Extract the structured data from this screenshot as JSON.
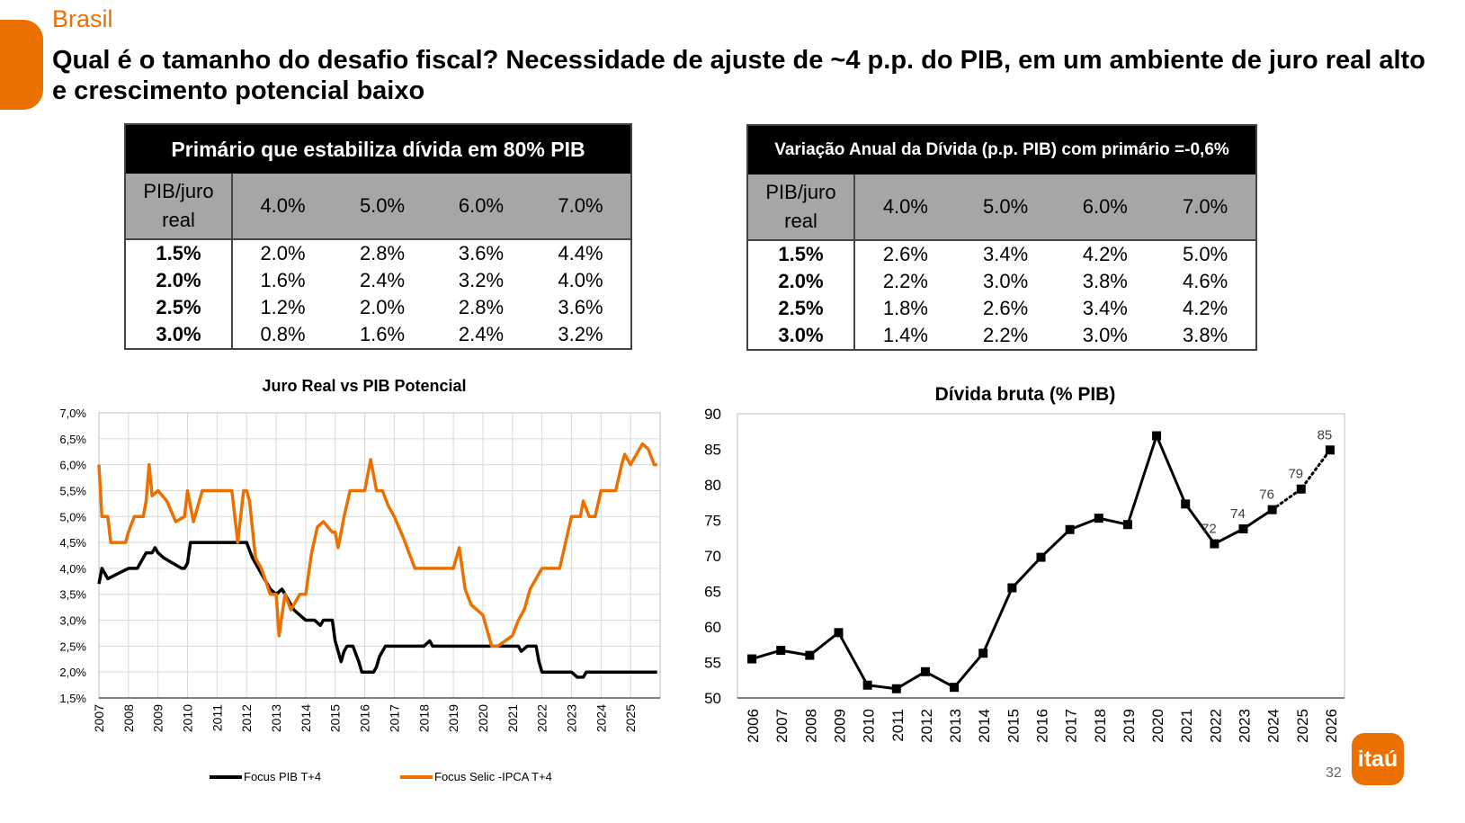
{
  "header": {
    "section": "Brasil",
    "title": "Qual é o tamanho do desafio fiscal? Necessidade de ajuste de ~4 p.p. do PIB, em um ambiente de juro real alto e crescimento potencial baixo"
  },
  "table_left": {
    "title": "Primário que estabiliza dívida em 80% PIB",
    "corner": "PIB/juro real",
    "cols": [
      "4.0%",
      "5.0%",
      "6.0%",
      "7.0%"
    ],
    "rows": [
      {
        "label": "1.5%",
        "values": [
          "2.0%",
          "2.8%",
          "3.6%",
          "4.4%"
        ]
      },
      {
        "label": "2.0%",
        "values": [
          "1.6%",
          "2.4%",
          "3.2%",
          "4.0%"
        ]
      },
      {
        "label": "2.5%",
        "values": [
          "1.2%",
          "2.0%",
          "2.8%",
          "3.6%"
        ]
      },
      {
        "label": "3.0%",
        "values": [
          "0.8%",
          "1.6%",
          "2.4%",
          "3.2%"
        ]
      }
    ]
  },
  "table_right": {
    "title": "Variação Anual da Dívida (p.p. PIB) com primário =-0,6%",
    "corner": "PIB/juro real",
    "cols": [
      "4.0%",
      "5.0%",
      "6.0%",
      "7.0%"
    ],
    "rows": [
      {
        "label": "1.5%",
        "values": [
          "2.6%",
          "3.4%",
          "4.2%",
          "5.0%"
        ]
      },
      {
        "label": "2.0%",
        "values": [
          "2.2%",
          "3.0%",
          "3.8%",
          "4.6%"
        ]
      },
      {
        "label": "2.5%",
        "values": [
          "1.8%",
          "2.6%",
          "3.4%",
          "4.2%"
        ]
      },
      {
        "label": "3.0%",
        "values": [
          "1.4%",
          "2.2%",
          "3.0%",
          "3.8%"
        ]
      }
    ]
  },
  "chart_data": [
    {
      "type": "line",
      "title": "Juro Real vs PIB Potencial",
      "xlabel": "",
      "ylabel": "",
      "ylim": [
        1.5,
        7.0
      ],
      "yticks": [
        "1,5%",
        "2,0%",
        "2,5%",
        "3,0%",
        "3,5%",
        "4,0%",
        "4,5%",
        "5,0%",
        "5,5%",
        "6,0%",
        "6,5%",
        "7,0%"
      ],
      "xlim": [
        2007,
        2026
      ],
      "xticks": [
        "2007",
        "2008",
        "2009",
        "2010",
        "2011",
        "2012",
        "2013",
        "2014",
        "2015",
        "2016",
        "2017",
        "2018",
        "2019",
        "2020",
        "2021",
        "2022",
        "2023",
        "2024",
        "2025"
      ],
      "grid": true,
      "legend": "bottom",
      "series": [
        {
          "name": "Focus PIB T+4",
          "color": "#000000",
          "x": [
            2007.0,
            2007.1,
            2007.3,
            2008.0,
            2008.3,
            2008.6,
            2008.8,
            2008.9,
            2009.0,
            2009.2,
            2009.5,
            2009.8,
            2009.9,
            2010.0,
            2010.1,
            2011.0,
            2012.0,
            2012.2,
            2012.4,
            2012.6,
            2012.8,
            2013.0,
            2013.2,
            2013.4,
            2013.6,
            2013.8,
            2014.0,
            2014.3,
            2014.5,
            2014.6,
            2014.9,
            2015.0,
            2015.1,
            2015.2,
            2015.3,
            2015.4,
            2015.6,
            2015.8,
            2015.9,
            2016.3,
            2016.4,
            2016.5,
            2016.7,
            2017.0,
            2017.5,
            2018.0,
            2018.2,
            2018.3,
            2019.0,
            2020.0,
            2021.0,
            2021.2,
            2021.3,
            2021.5,
            2021.8,
            2021.9,
            2022.0,
            2023.0,
            2023.2,
            2023.4,
            2023.5,
            2024.0,
            2025.0,
            2025.9
          ],
          "values": [
            3.7,
            4.0,
            3.8,
            4.0,
            4.0,
            4.3,
            4.3,
            4.4,
            4.3,
            4.2,
            4.1,
            4.0,
            4.0,
            4.1,
            4.5,
            4.5,
            4.5,
            4.2,
            4.0,
            3.8,
            3.6,
            3.5,
            3.6,
            3.4,
            3.2,
            3.1,
            3.0,
            3.0,
            2.9,
            3.0,
            3.0,
            2.6,
            2.4,
            2.2,
            2.4,
            2.5,
            2.5,
            2.2,
            2.0,
            2.0,
            2.1,
            2.3,
            2.5,
            2.5,
            2.5,
            2.5,
            2.6,
            2.5,
            2.5,
            2.5,
            2.5,
            2.5,
            2.4,
            2.5,
            2.5,
            2.2,
            2.0,
            2.0,
            1.9,
            1.9,
            2.0,
            2.0,
            2.0,
            2.0
          ]
        },
        {
          "name": "Focus Selic -IPCA T+4",
          "color": "#ec7000",
          "x": [
            2007.0,
            2007.1,
            2007.3,
            2007.4,
            2007.5,
            2007.9,
            2008.0,
            2008.2,
            2008.5,
            2008.6,
            2008.7,
            2008.8,
            2009.0,
            2009.3,
            2009.6,
            2009.9,
            2010.0,
            2010.2,
            2010.3,
            2010.5,
            2010.6,
            2011.0,
            2011.5,
            2011.7,
            2011.8,
            2011.9,
            2012.0,
            2012.1,
            2012.3,
            2012.5,
            2012.8,
            2013.0,
            2013.1,
            2013.3,
            2013.5,
            2013.8,
            2014.0,
            2014.2,
            2014.4,
            2014.6,
            2014.9,
            2015.0,
            2015.1,
            2015.3,
            2015.5,
            2015.7,
            2016.0,
            2016.2,
            2016.4,
            2016.6,
            2016.8,
            2017.0,
            2017.3,
            2017.5,
            2017.7,
            2018.0,
            2018.3,
            2018.6,
            2019.0,
            2019.2,
            2019.4,
            2019.6,
            2020.0,
            2020.2,
            2020.3,
            2020.5,
            2021.0,
            2021.2,
            2021.4,
            2021.6,
            2022.0,
            2022.3,
            2022.6,
            2022.8,
            2023.0,
            2023.3,
            2023.4,
            2023.6,
            2023.8,
            2024.0,
            2024.3,
            2024.5,
            2024.7,
            2024.8,
            2025.0,
            2025.2,
            2025.4,
            2025.6,
            2025.8,
            2025.9
          ],
          "values": [
            6.0,
            5.0,
            5.0,
            4.5,
            4.5,
            4.5,
            4.7,
            5.0,
            5.0,
            5.3,
            6.0,
            5.4,
            5.5,
            5.3,
            4.9,
            5.0,
            5.5,
            4.9,
            5.1,
            5.5,
            5.5,
            5.5,
            5.5,
            4.5,
            5.0,
            5.5,
            5.5,
            5.3,
            4.2,
            4.0,
            3.5,
            3.5,
            2.7,
            3.5,
            3.2,
            3.5,
            3.5,
            4.3,
            4.8,
            4.9,
            4.7,
            4.7,
            4.4,
            5.0,
            5.5,
            5.5,
            5.5,
            6.1,
            5.5,
            5.5,
            5.2,
            5.0,
            4.6,
            4.3,
            4.0,
            4.0,
            4.0,
            4.0,
            4.0,
            4.4,
            3.6,
            3.3,
            3.1,
            2.7,
            2.5,
            2.5,
            2.7,
            3.0,
            3.2,
            3.6,
            4.0,
            4.0,
            4.0,
            4.5,
            5.0,
            5.0,
            5.3,
            5.0,
            5.0,
            5.5,
            5.5,
            5.5,
            6.0,
            6.2,
            6.0,
            6.2,
            6.4,
            6.3,
            6.0,
            6.0
          ]
        }
      ]
    },
    {
      "type": "line",
      "title": "Dívida bruta (% PIB)",
      "xlabel": "",
      "ylabel": "",
      "ylim": [
        50,
        90
      ],
      "yticks": [
        "50",
        "55",
        "60",
        "65",
        "70",
        "75",
        "80",
        "85",
        "90"
      ],
      "categories": [
        "2006",
        "2007",
        "2008",
        "2009",
        "2010",
        "2011",
        "2012",
        "2013",
        "2014",
        "2015",
        "2016",
        "2017",
        "2018",
        "2019",
        "2020",
        "2021",
        "2022",
        "2023",
        "2024",
        "2025",
        "2026"
      ],
      "values": [
        55.5,
        56.7,
        56.0,
        59.2,
        51.8,
        51.3,
        53.7,
        51.5,
        56.3,
        65.5,
        69.8,
        73.7,
        75.3,
        74.4,
        86.9,
        77.3,
        71.7,
        73.8,
        76.5,
        79.4,
        84.9
      ],
      "projection_from": "2024",
      "data_labels": {
        "2022": "72",
        "2023": "74",
        "2024": "76",
        "2025": "79",
        "2026": "85"
      },
      "grid": false,
      "color": "#000000"
    }
  ],
  "legend_items": [
    {
      "label": "Focus PIB T+4",
      "color": "#000000"
    },
    {
      "label": "Focus Selic -IPCA T+4",
      "color": "#ec7000"
    }
  ],
  "footer": {
    "page": "32",
    "logo": "itaú"
  }
}
